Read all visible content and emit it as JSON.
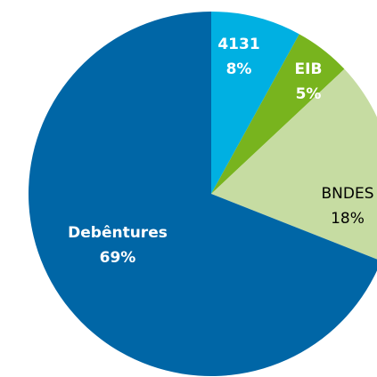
{
  "chart_data": {
    "type": "pie",
    "categories": [
      "4131",
      "EIB",
      "BNDES",
      "Debêntures"
    ],
    "values": [
      8,
      5,
      18,
      69
    ],
    "value_labels": [
      "8%",
      "5%",
      "18%",
      "69%"
    ],
    "colors": [
      "#00b0e2",
      "#78b41e",
      "#c6dca2",
      "#0066a6"
    ],
    "label_colors": [
      "#ffffff",
      "#ffffff",
      "#000000",
      "#ffffff"
    ],
    "label_bold": [
      true,
      true,
      false,
      true
    ]
  }
}
